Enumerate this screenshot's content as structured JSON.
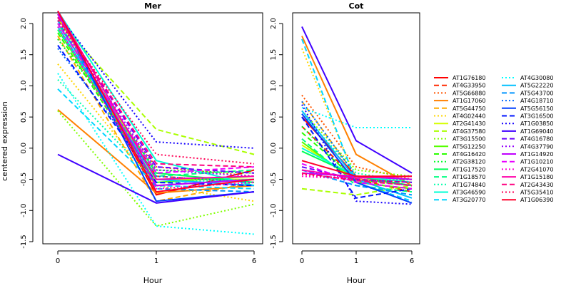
{
  "chart_data": {
    "type": "line",
    "ylabel": "centered expression",
    "xlabel": "Hour",
    "categories": [
      "0",
      "1",
      "6"
    ],
    "ylim": [
      -1.5,
      2.25
    ],
    "yticks": [
      -1.5,
      -1.0,
      -0.5,
      0.0,
      0.5,
      1.0,
      1.5,
      2.0
    ],
    "ytick_labels": [
      "-1.5",
      "-1.0",
      "-0.5",
      "0.0",
      "0.5",
      "1.0",
      "1.5",
      "2.0"
    ],
    "legend_position": "right",
    "series_style": [
      {
        "name": "AT1G76180",
        "color": "#ff0000",
        "dash": "solid"
      },
      {
        "name": "AT4G33950",
        "color": "#ff2a00",
        "dash": "dashed"
      },
      {
        "name": "AT5G66880",
        "color": "#ff5500",
        "dash": "dotted"
      },
      {
        "name": "AT1G17060",
        "color": "#ff8000",
        "dash": "solid"
      },
      {
        "name": "AT5G44750",
        "color": "#ffaa00",
        "dash": "dashed"
      },
      {
        "name": "AT4G02440",
        "color": "#ffd500",
        "dash": "dotted"
      },
      {
        "name": "AT2G41430",
        "color": "#d5ff00",
        "dash": "solid"
      },
      {
        "name": "AT4G37580",
        "color": "#aaff00",
        "dash": "dashed"
      },
      {
        "name": "AT3G15500",
        "color": "#80ff00",
        "dash": "dotted"
      },
      {
        "name": "AT5G12250",
        "color": "#55ff00",
        "dash": "solid"
      },
      {
        "name": "AT4G16420",
        "color": "#2aff00",
        "dash": "dashed"
      },
      {
        "name": "AT2G38120",
        "color": "#00ff2a",
        "dash": "dotted"
      },
      {
        "name": "AT1G17520",
        "color": "#00ff55",
        "dash": "solid"
      },
      {
        "name": "AT1G18570",
        "color": "#00ff80",
        "dash": "dashed"
      },
      {
        "name": "AT1G74840",
        "color": "#00ffaa",
        "dash": "dotted"
      },
      {
        "name": "AT3G46590",
        "color": "#00ffd5",
        "dash": "solid"
      },
      {
        "name": "AT3G20770",
        "color": "#00d5ff",
        "dash": "dashed"
      },
      {
        "name": "AT4G30080",
        "color": "#00ffff",
        "dash": "dotted"
      },
      {
        "name": "AT5G22220",
        "color": "#00c0ff",
        "dash": "solid"
      },
      {
        "name": "AT5G43700",
        "color": "#0095ff",
        "dash": "dashed"
      },
      {
        "name": "AT4G18710",
        "color": "#006aff",
        "dash": "dotted"
      },
      {
        "name": "AT5G56150",
        "color": "#0040ff",
        "dash": "solid"
      },
      {
        "name": "AT3G16500",
        "color": "#0015ff",
        "dash": "dashed"
      },
      {
        "name": "AT1G03850",
        "color": "#1500ff",
        "dash": "dotted"
      },
      {
        "name": "AT1G69040",
        "color": "#4000ff",
        "dash": "solid"
      },
      {
        "name": "AT4G16780",
        "color": "#6a00ff",
        "dash": "dashed"
      },
      {
        "name": "AT4G37790",
        "color": "#9500ff",
        "dash": "dotted"
      },
      {
        "name": "AT1G14920",
        "color": "#c000ff",
        "dash": "solid"
      },
      {
        "name": "AT1G10210",
        "color": "#ea00ff",
        "dash": "dashed"
      },
      {
        "name": "AT2G41070",
        "color": "#ff00d5",
        "dash": "dotted"
      },
      {
        "name": "AT1G15180",
        "color": "#ff00aa",
        "dash": "solid"
      },
      {
        "name": "AT2G43430",
        "color": "#ff0080",
        "dash": "dashed"
      },
      {
        "name": "AT5G35410",
        "color": "#ff0055",
        "dash": "dotted"
      },
      {
        "name": "AT1G06390",
        "color": "#ff002a",
        "dash": "solid"
      }
    ],
    "panels": [
      {
        "title": "Mer",
        "series": [
          {
            "name": "AT1G76180",
            "values": [
              2.15,
              -0.75,
              -0.35
            ]
          },
          {
            "name": "AT4G33950",
            "values": [
              2.0,
              -0.45,
              -0.55
            ]
          },
          {
            "name": "AT5G66880",
            "values": [
              1.75,
              -0.3,
              -0.45
            ]
          },
          {
            "name": "AT1G17060",
            "values": [
              0.62,
              -0.72,
              -0.6
            ]
          },
          {
            "name": "AT5G44750",
            "values": [
              1.8,
              -0.85,
              -0.55
            ]
          },
          {
            "name": "AT4G02440",
            "values": [
              1.35,
              -0.6,
              -0.85
            ]
          },
          {
            "name": "AT2G41430",
            "values": [
              2.1,
              -0.5,
              -0.5
            ]
          },
          {
            "name": "AT4G37580",
            "values": [
              2.05,
              0.3,
              -0.1
            ]
          },
          {
            "name": "AT3G15500",
            "values": [
              0.6,
              -1.25,
              -0.9
            ]
          },
          {
            "name": "AT5G12250",
            "values": [
              1.9,
              -0.55,
              -0.45
            ]
          },
          {
            "name": "AT4G16420",
            "values": [
              1.85,
              -0.6,
              -0.5
            ]
          },
          {
            "name": "AT2G38120",
            "values": [
              1.75,
              -0.35,
              -0.4
            ]
          },
          {
            "name": "AT1G17520",
            "values": [
              2.0,
              -0.4,
              -0.55
            ]
          },
          {
            "name": "AT1G18570",
            "values": [
              1.9,
              -0.45,
              -0.35
            ]
          },
          {
            "name": "AT1G74840",
            "values": [
              1.1,
              -0.55,
              -0.5
            ]
          },
          {
            "name": "AT3G46590",
            "values": [
              2.2,
              -0.2,
              -0.6
            ]
          },
          {
            "name": "AT3G20770",
            "values": [
              0.95,
              -0.6,
              -0.65
            ]
          },
          {
            "name": "AT4G30080",
            "values": [
              1.2,
              -1.25,
              -1.38
            ]
          },
          {
            "name": "AT5G22220",
            "values": [
              1.95,
              -0.5,
              -0.6
            ]
          },
          {
            "name": "AT5G43700",
            "values": [
              2.05,
              -0.65,
              -0.7
            ]
          },
          {
            "name": "AT4G18710",
            "values": [
              1.6,
              -0.45,
              -0.55
            ]
          },
          {
            "name": "AT5G56150",
            "values": [
              2.2,
              -0.85,
              -0.7
            ]
          },
          {
            "name": "AT3G16500",
            "values": [
              1.65,
              -0.55,
              -0.6
            ]
          },
          {
            "name": "AT1G03850",
            "values": [
              2.15,
              0.1,
              0.0
            ]
          },
          {
            "name": "AT1G69040",
            "values": [
              -0.1,
              -0.88,
              -0.7
            ]
          },
          {
            "name": "AT4G16780",
            "values": [
              2.1,
              -0.3,
              -0.4
            ]
          },
          {
            "name": "AT4G37790",
            "values": [
              2.05,
              -0.35,
              -0.45
            ]
          },
          {
            "name": "AT1G14920",
            "values": [
              2.15,
              -0.6,
              -0.5
            ]
          },
          {
            "name": "AT1G10210",
            "values": [
              2.0,
              -0.4,
              -0.3
            ]
          },
          {
            "name": "AT2G41070",
            "values": [
              1.95,
              -0.65,
              -0.55
            ]
          },
          {
            "name": "AT1G15180",
            "values": [
              2.2,
              -0.5,
              -0.45
            ]
          },
          {
            "name": "AT2G43430",
            "values": [
              2.1,
              -0.25,
              -0.3
            ]
          },
          {
            "name": "AT5G35410",
            "values": [
              2.05,
              -0.1,
              -0.25
            ]
          },
          {
            "name": "AT1G06390",
            "values": [
              2.2,
              -0.7,
              -0.5
            ]
          }
        ]
      },
      {
        "title": "Cot",
        "series": [
          {
            "name": "AT1G76180",
            "values": [
              0.5,
              -0.45,
              -0.5
            ]
          },
          {
            "name": "AT4G33950",
            "values": [
              0.35,
              -0.5,
              -0.7
            ]
          },
          {
            "name": "AT5G66880",
            "values": [
              0.85,
              -0.3,
              -0.5
            ]
          },
          {
            "name": "AT1G17060",
            "values": [
              1.8,
              -0.1,
              -0.6
            ]
          },
          {
            "name": "AT5G44750",
            "values": [
              0.75,
              -0.45,
              -0.55
            ]
          },
          {
            "name": "AT4G02440",
            "values": [
              1.6,
              -0.5,
              -0.5
            ]
          },
          {
            "name": "AT2G41430",
            "values": [
              0.05,
              -0.5,
              -0.6
            ]
          },
          {
            "name": "AT4G37580",
            "values": [
              -0.65,
              -0.75,
              -0.6
            ]
          },
          {
            "name": "AT3G15500",
            "values": [
              0.6,
              -0.35,
              -0.45
            ]
          },
          {
            "name": "AT5G12250",
            "values": [
              0.1,
              -0.55,
              -0.65
            ]
          },
          {
            "name": "AT4G16420",
            "values": [
              0.25,
              -0.5,
              -0.6
            ]
          },
          {
            "name": "AT2G38120",
            "values": [
              0.35,
              -0.55,
              -0.5
            ]
          },
          {
            "name": "AT1G17520",
            "values": [
              -0.05,
              -0.45,
              -0.6
            ]
          },
          {
            "name": "AT1G18570",
            "values": [
              0.15,
              -0.6,
              -0.7
            ]
          },
          {
            "name": "AT1G74840",
            "values": [
              0.55,
              -0.4,
              -0.55
            ]
          },
          {
            "name": "AT3G46590",
            "values": [
              0.0,
              -0.45,
              -0.55
            ]
          },
          {
            "name": "AT3G20770",
            "values": [
              1.75,
              -0.55,
              -0.85
            ]
          },
          {
            "name": "AT4G30080",
            "values": [
              0.65,
              0.33,
              0.33
            ]
          },
          {
            "name": "AT5G22220",
            "values": [
              0.6,
              -0.5,
              -0.8
            ]
          },
          {
            "name": "AT5G43700",
            "values": [
              -0.35,
              -0.6,
              -0.75
            ]
          },
          {
            "name": "AT4G18710",
            "values": [
              0.75,
              -0.45,
              -0.5
            ]
          },
          {
            "name": "AT5G56150",
            "values": [
              0.55,
              -0.55,
              -0.88
            ]
          },
          {
            "name": "AT3G16500",
            "values": [
              0.5,
              -0.8,
              -0.65
            ]
          },
          {
            "name": "AT1G03850",
            "values": [
              0.7,
              -0.85,
              -0.9
            ]
          },
          {
            "name": "AT1G69040",
            "values": [
              1.95,
              0.12,
              -0.4
            ]
          },
          {
            "name": "AT4G16780",
            "values": [
              -0.3,
              -0.5,
              -0.55
            ]
          },
          {
            "name": "AT4G37790",
            "values": [
              -0.35,
              -0.5,
              -0.6
            ]
          },
          {
            "name": "AT1G14920",
            "values": [
              -0.4,
              -0.45,
              -0.5
            ]
          },
          {
            "name": "AT1G10210",
            "values": [
              -0.25,
              -0.55,
              -0.65
            ]
          },
          {
            "name": "AT2G41070",
            "values": [
              -0.45,
              -0.5,
              -0.55
            ]
          },
          {
            "name": "AT1G15180",
            "values": [
              -0.35,
              -0.48,
              -0.45
            ]
          },
          {
            "name": "AT2G43430",
            "values": [
              -0.4,
              -0.52,
              -0.6
            ]
          },
          {
            "name": "AT5G35410",
            "values": [
              -0.42,
              -0.5,
              -0.55
            ]
          },
          {
            "name": "AT1G06390",
            "values": [
              -0.2,
              -0.45,
              -0.45
            ]
          }
        ]
      }
    ]
  }
}
